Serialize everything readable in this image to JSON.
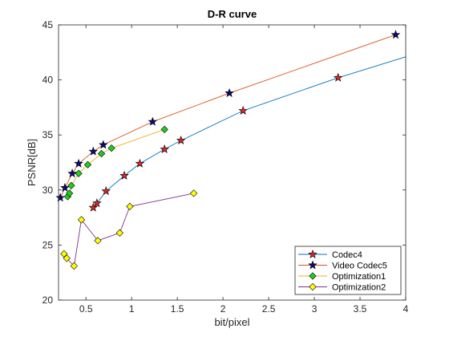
{
  "chart_data": {
    "type": "line",
    "title": "D-R curve",
    "xlabel": "bit/pixel",
    "ylabel": "PSNR[dB]",
    "xlim": [
      0.2,
      4
    ],
    "ylim": [
      20,
      45
    ],
    "xticks": [
      "0.5",
      "1",
      "1.5",
      "2",
      "2.5",
      "3",
      "3.5",
      "4"
    ],
    "yticks": [
      "20",
      "25",
      "30",
      "35",
      "40",
      "45"
    ],
    "grid": false,
    "legend_position": "bottom-right",
    "series": [
      {
        "name": "Codec4",
        "line_color": "#0072bd",
        "marker": "star",
        "marker_color": "#d62728",
        "smooth_to_edge": true,
        "points": [
          [
            0.58,
            28.4
          ],
          [
            0.62,
            28.8
          ],
          [
            0.72,
            29.9
          ],
          [
            0.92,
            31.3
          ],
          [
            1.09,
            32.4
          ],
          [
            1.36,
            33.7
          ],
          [
            1.54,
            34.5
          ],
          [
            2.22,
            37.2
          ],
          [
            3.26,
            40.2
          ],
          [
            4.0,
            42.1
          ]
        ]
      },
      {
        "name": "Video Codec5",
        "line_color": "#d95319",
        "marker": "star",
        "marker_color": "#0a0a7a",
        "points": [
          [
            0.22,
            29.3
          ],
          [
            0.27,
            30.2
          ],
          [
            0.35,
            31.5
          ],
          [
            0.42,
            32.4
          ],
          [
            0.58,
            33.5
          ],
          [
            0.69,
            34.1
          ],
          [
            1.23,
            36.2
          ],
          [
            2.07,
            38.8
          ],
          [
            3.89,
            44.1
          ]
        ]
      },
      {
        "name": "Optimization1",
        "line_color": "#edb120",
        "marker": "diamond",
        "marker_color": "#22cc22",
        "points": [
          [
            0.3,
            29.4
          ],
          [
            0.32,
            29.7
          ],
          [
            0.34,
            30.4
          ],
          [
            0.42,
            31.5
          ],
          [
            0.52,
            32.3
          ],
          [
            0.67,
            33.3
          ],
          [
            0.78,
            33.8
          ],
          [
            1.36,
            35.5
          ]
        ]
      },
      {
        "name": "Optimization2",
        "line_color": "#7e2f8e",
        "marker": "diamond",
        "marker_color": "#ffff00",
        "points": [
          [
            0.26,
            24.2
          ],
          [
            0.29,
            23.8
          ],
          [
            0.37,
            23.1
          ],
          [
            0.45,
            27.3
          ],
          [
            0.63,
            25.4
          ],
          [
            0.87,
            26.1
          ],
          [
            0.98,
            28.5
          ],
          [
            1.68,
            29.7
          ]
        ]
      }
    ]
  }
}
